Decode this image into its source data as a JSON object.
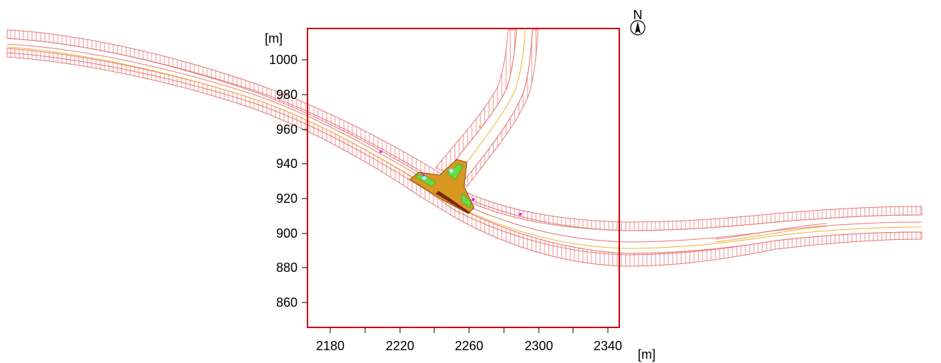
{
  "map": {
    "x_axis": {
      "unit": "[m]",
      "ticks": [
        "2180",
        "2220",
        "2260",
        "2300",
        "2340"
      ]
    },
    "y_axis": {
      "unit": "[m]",
      "ticks": [
        "1000",
        "980",
        "960",
        "940",
        "920",
        "900",
        "880",
        "860"
      ]
    },
    "north_arrow": {
      "label": "N"
    },
    "frame_color": "#cc0000",
    "road_color": "#e87878",
    "centerline_color": "#f0b030",
    "intersection_fill": "#d89820",
    "island_color": "#66dd44",
    "marker_color": "#ee22ee"
  }
}
